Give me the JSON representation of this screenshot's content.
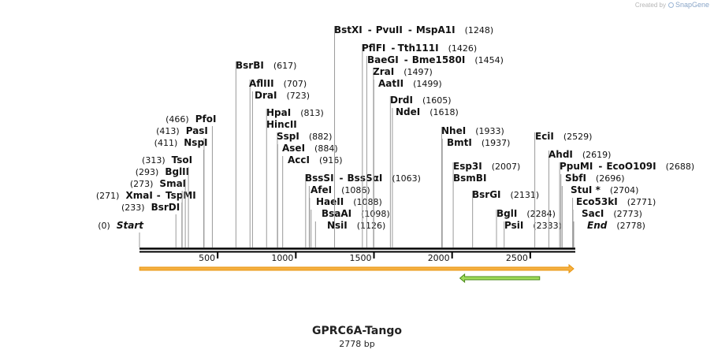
{
  "credit": {
    "prefix": "Created by",
    "brand": "SnapGene"
  },
  "plasmid": {
    "name": "GPRC6A-Tango",
    "length_label": "2778 bp",
    "length": 2778
  },
  "ruler": {
    "ticks": [
      {
        "pos": 500,
        "label": "500"
      },
      {
        "pos": 1000,
        "label": "1000"
      },
      {
        "pos": 1500,
        "label": "1500"
      },
      {
        "pos": 2000,
        "label": "2000"
      },
      {
        "pos": 2500,
        "label": "2500"
      }
    ]
  },
  "features": [
    {
      "name": "orange-feature",
      "start": 1,
      "end": 2778,
      "direction": "forward",
      "color": "#f5b042",
      "edge": "#e8950c"
    },
    {
      "name": "green-feature",
      "start": 2050,
      "end": 2560,
      "direction": "reverse",
      "color": "#9fdc5a",
      "edge": "#4a8a1a"
    }
  ],
  "colors": {
    "backbone": "#000000",
    "line": "#9a9a9a"
  },
  "sites": [
    {
      "pos": 0,
      "side": "left",
      "labels": [
        {
          "text": "Start",
          "italic": true
        }
      ],
      "pos_label": "(0)"
    },
    {
      "pos": 233,
      "side": "left",
      "labels": [
        {
          "text": "BsrDI"
        }
      ],
      "pos_label": "(233)"
    },
    {
      "pos": 271,
      "side": "left",
      "labels": [
        {
          "text": "XmaI"
        },
        {
          "text": "TspMI"
        }
      ],
      "pos_label": "(271)"
    },
    {
      "pos": 273,
      "side": "left",
      "labels": [
        {
          "text": "SmaI"
        }
      ],
      "pos_label": "(273)"
    },
    {
      "pos": 293,
      "side": "left",
      "labels": [
        {
          "text": "BglII"
        }
      ],
      "pos_label": "(293)"
    },
    {
      "pos": 313,
      "side": "left",
      "labels": [
        {
          "text": "TsoI"
        }
      ],
      "pos_label": "(313)"
    },
    {
      "pos": 411,
      "side": "left",
      "labels": [
        {
          "text": "NspI"
        }
      ],
      "pos_label": "(411)"
    },
    {
      "pos": 413,
      "side": "left",
      "labels": [
        {
          "text": "PasI"
        }
      ],
      "pos_label": "(413)"
    },
    {
      "pos": 466,
      "side": "left",
      "labels": [
        {
          "text": "PfoI"
        }
      ],
      "pos_label": "(466)"
    },
    {
      "pos": 617,
      "side": "right",
      "labels": [
        {
          "text": "BsrBI"
        }
      ],
      "pos_label": "(617)"
    },
    {
      "pos": 707,
      "side": "right",
      "labels": [
        {
          "text": "AflIII"
        }
      ],
      "pos_label": "(707)"
    },
    {
      "pos": 723,
      "side": "right",
      "labels": [
        {
          "text": "DraI"
        }
      ],
      "pos_label": "(723)"
    },
    {
      "pos": 813,
      "side": "right",
      "labels": [
        {
          "text": "HpaI"
        }
      ],
      "pos_label": "(813)"
    },
    {
      "pos": 813,
      "side": "right",
      "labels": [
        {
          "text": "HincII"
        }
      ],
      "pos_label": ""
    },
    {
      "pos": 882,
      "side": "right",
      "labels": [
        {
          "text": "SspI"
        }
      ],
      "pos_label": "(882)"
    },
    {
      "pos": 884,
      "side": "right",
      "labels": [
        {
          "text": "AseI"
        }
      ],
      "pos_label": "(884)"
    },
    {
      "pos": 916,
      "side": "right",
      "labels": [
        {
          "text": "AccI"
        }
      ],
      "pos_label": "(916)"
    },
    {
      "pos": 1063,
      "side": "right",
      "labels": [
        {
          "text": "BssSI"
        },
        {
          "text": "BssSαI"
        }
      ],
      "pos_label": "(1063)"
    },
    {
      "pos": 1086,
      "side": "right",
      "labels": [
        {
          "text": "AfeI"
        }
      ],
      "pos_label": "(1086)"
    },
    {
      "pos": 1088,
      "side": "right",
      "labels": [
        {
          "text": "HaeII"
        }
      ],
      "pos_label": "(1088)"
    },
    {
      "pos": 1098,
      "side": "right",
      "labels": [
        {
          "text": "BsaAI"
        }
      ],
      "pos_label": "(1098)"
    },
    {
      "pos": 1126,
      "side": "right",
      "labels": [
        {
          "text": "NsiI"
        }
      ],
      "pos_label": "(1126)"
    },
    {
      "pos": 1248,
      "side": "right",
      "labels": [
        {
          "text": "BstXI"
        },
        {
          "text": "PvuII"
        },
        {
          "text": "MspA1I"
        }
      ],
      "pos_label": "(1248)"
    },
    {
      "pos": 1426,
      "side": "right",
      "labels": [
        {
          "text": "PflFI"
        },
        {
          "text": "Tth111I"
        }
      ],
      "pos_label": "(1426)"
    },
    {
      "pos": 1454,
      "side": "right",
      "labels": [
        {
          "text": "BaeGI"
        },
        {
          "text": "Bme1580I"
        }
      ],
      "pos_label": "(1454)"
    },
    {
      "pos": 1497,
      "side": "right",
      "labels": [
        {
          "text": "ZraI"
        }
      ],
      "pos_label": "(1497)"
    },
    {
      "pos": 1499,
      "side": "right",
      "labels": [
        {
          "text": "AatII"
        }
      ],
      "pos_label": "(1499)"
    },
    {
      "pos": 1605,
      "side": "right",
      "labels": [
        {
          "text": "DrdI"
        }
      ],
      "pos_label": "(1605)"
    },
    {
      "pos": 1618,
      "side": "right",
      "labels": [
        {
          "text": "NdeI"
        }
      ],
      "pos_label": "(1618)"
    },
    {
      "pos": 1933,
      "side": "right",
      "labels": [
        {
          "text": "NheI"
        }
      ],
      "pos_label": "(1933)"
    },
    {
      "pos": 1937,
      "side": "right",
      "labels": [
        {
          "text": "BmtI"
        }
      ],
      "pos_label": "(1937)"
    },
    {
      "pos": 2007,
      "side": "right",
      "labels": [
        {
          "text": "Esp3I"
        }
      ],
      "pos_label": "(2007)"
    },
    {
      "pos": 2007,
      "side": "right",
      "labels": [
        {
          "text": "BsmBI"
        }
      ],
      "pos_label": ""
    },
    {
      "pos": 2131,
      "side": "right",
      "labels": [
        {
          "text": "BsrGI"
        }
      ],
      "pos_label": "(2131)"
    },
    {
      "pos": 2284,
      "side": "right",
      "labels": [
        {
          "text": "BglI"
        }
      ],
      "pos_label": "(2284)"
    },
    {
      "pos": 2333,
      "side": "right",
      "labels": [
        {
          "text": "PsiI"
        }
      ],
      "pos_label": "(2333)"
    },
    {
      "pos": 2529,
      "side": "right",
      "labels": [
        {
          "text": "EciI"
        }
      ],
      "pos_label": "(2529)"
    },
    {
      "pos": 2619,
      "side": "right",
      "labels": [
        {
          "text": "AhdI"
        }
      ],
      "pos_label": "(2619)"
    },
    {
      "pos": 2688,
      "side": "right",
      "labels": [
        {
          "text": "PpuMI"
        },
        {
          "text": "EcoO109I"
        }
      ],
      "pos_label": "(2688)"
    },
    {
      "pos": 2696,
      "side": "right",
      "labels": [
        {
          "text": "SbfI"
        }
      ],
      "pos_label": "(2696)"
    },
    {
      "pos": 2704,
      "side": "right",
      "labels": [
        {
          "text": "StuI *"
        }
      ],
      "pos_label": "(2704)"
    },
    {
      "pos": 2771,
      "side": "right",
      "labels": [
        {
          "text": "Eco53kI"
        }
      ],
      "pos_label": "(2771)"
    },
    {
      "pos": 2773,
      "side": "right",
      "labels": [
        {
          "text": "SacI"
        }
      ],
      "pos_label": "(2773)"
    },
    {
      "pos": 2778,
      "side": "right",
      "labels": [
        {
          "text": "End",
          "italic": true
        }
      ],
      "pos_label": "(2778)"
    }
  ]
}
